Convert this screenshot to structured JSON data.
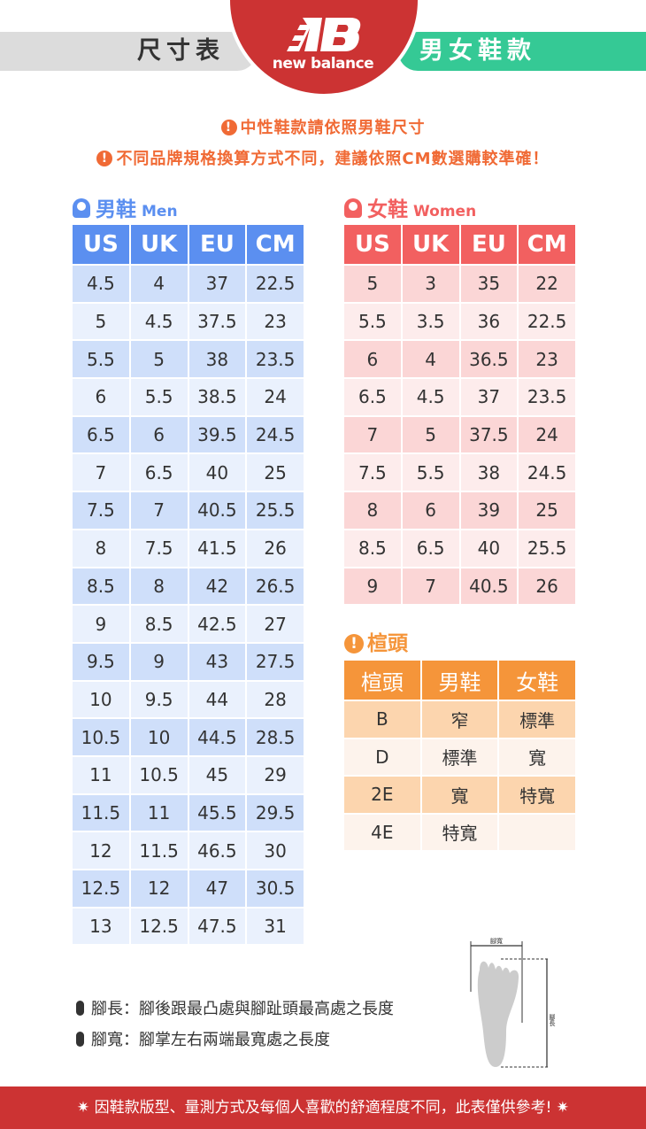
{
  "header": {
    "left_title": "尺寸表",
    "right_title": "男女鞋款",
    "brand": "new balance"
  },
  "notes": [
    "中性鞋款請依照男鞋尺寸",
    "不同品牌規格換算方式不同，建議依照CM數選購較準確！"
  ],
  "men": {
    "title": "男鞋",
    "subtitle": "Men",
    "columns": [
      "US",
      "UK",
      "EU",
      "CM"
    ],
    "rows": [
      [
        "4.5",
        "4",
        "37",
        "22.5"
      ],
      [
        "5",
        "4.5",
        "37.5",
        "23"
      ],
      [
        "5.5",
        "5",
        "38",
        "23.5"
      ],
      [
        "6",
        "5.5",
        "38.5",
        "24"
      ],
      [
        "6.5",
        "6",
        "39.5",
        "24.5"
      ],
      [
        "7",
        "6.5",
        "40",
        "25"
      ],
      [
        "7.5",
        "7",
        "40.5",
        "25.5"
      ],
      [
        "8",
        "7.5",
        "41.5",
        "26"
      ],
      [
        "8.5",
        "8",
        "42",
        "26.5"
      ],
      [
        "9",
        "8.5",
        "42.5",
        "27"
      ],
      [
        "9.5",
        "9",
        "43",
        "27.5"
      ],
      [
        "10",
        "9.5",
        "44",
        "28"
      ],
      [
        "10.5",
        "10",
        "44.5",
        "28.5"
      ],
      [
        "11",
        "10.5",
        "45",
        "29"
      ],
      [
        "11.5",
        "11",
        "45.5",
        "29.5"
      ],
      [
        "12",
        "11.5",
        "46.5",
        "30"
      ],
      [
        "12.5",
        "12",
        "47",
        "30.5"
      ],
      [
        "13",
        "12.5",
        "47.5",
        "31"
      ]
    ]
  },
  "women": {
    "title": "女鞋",
    "subtitle": "Women",
    "columns": [
      "US",
      "UK",
      "EU",
      "CM"
    ],
    "rows": [
      [
        "5",
        "3",
        "35",
        "22"
      ],
      [
        "5.5",
        "3.5",
        "36",
        "22.5"
      ],
      [
        "6",
        "4",
        "36.5",
        "23"
      ],
      [
        "6.5",
        "4.5",
        "37",
        "23.5"
      ],
      [
        "7",
        "5",
        "37.5",
        "24"
      ],
      [
        "7.5",
        "5.5",
        "38",
        "24.5"
      ],
      [
        "8",
        "6",
        "39",
        "25"
      ],
      [
        "8.5",
        "6.5",
        "40",
        "25.5"
      ],
      [
        "9",
        "7",
        "40.5",
        "26"
      ]
    ]
  },
  "width": {
    "title": "楦頭",
    "columns": [
      "楦頭",
      "男鞋",
      "女鞋"
    ],
    "rows": [
      [
        "B",
        "窄",
        "標準"
      ],
      [
        "D",
        "標準",
        "寬"
      ],
      [
        "2E",
        "寬",
        "特寬"
      ],
      [
        "4E",
        "特寬",
        ""
      ]
    ]
  },
  "definitions": [
    "腳長：腳後跟最凸處與腳趾頭最高處之長度",
    "腳寬：腳掌左右兩端最寬處之長度"
  ],
  "diagram": {
    "width_label": "腳寬",
    "length_label": "腳長"
  },
  "footer": "因鞋款版型、量測方式及每個人喜歡的舒適程度不同，此表僅供參考!",
  "colors": {
    "brand_red": "#cc3333",
    "green": "#35c995",
    "men_blue": "#5b8ff0",
    "women_red": "#f26060",
    "orange": "#f5953a",
    "note_orange": "#f06a35"
  }
}
